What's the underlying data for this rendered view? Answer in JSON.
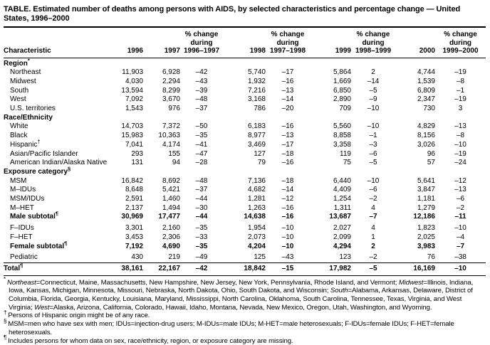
{
  "title": "TABLE. Estimated number of deaths among persons with AIDS, by selected characteristics and percentage change — United States, 1996–2000",
  "table": {
    "header": {
      "characteristic": "Characteristic",
      "pct_change_line1": "% change",
      "pct_change_line2": "during",
      "years": [
        "1996",
        "1997",
        "1998",
        "1999",
        "2000"
      ],
      "ranges": [
        "1996–1997",
        "1997–1998",
        "1998–1999",
        "1999–2000"
      ]
    },
    "rows": [
      {
        "type": "section",
        "label": "Region",
        "marker": "*"
      },
      {
        "type": "data",
        "label": "Northeast",
        "values": [
          "11,903",
          "6,928",
          "–42",
          "5,740",
          "–17",
          "5,864",
          "2",
          "4,744",
          "–19"
        ]
      },
      {
        "type": "data",
        "label": "Midwest",
        "values": [
          "4,030",
          "2,294",
          "–43",
          "1,932",
          "–16",
          "1,669",
          "–14",
          "1,539",
          "–8"
        ]
      },
      {
        "type": "data",
        "label": "South",
        "values": [
          "13,594",
          "8,299",
          "–39",
          "7,216",
          "–13",
          "6,850",
          "–5",
          "6,809",
          "–1"
        ]
      },
      {
        "type": "data",
        "label": "West",
        "values": [
          "7,092",
          "3,670",
          "–48",
          "3,168",
          "–14",
          "2,890",
          "–9",
          "2,347",
          "–19"
        ]
      },
      {
        "type": "data",
        "label": "U.S. territories",
        "values": [
          "1,543",
          "976",
          "–37",
          "786",
          "–20",
          "709",
          "–10",
          "730",
          "3"
        ]
      },
      {
        "type": "section",
        "label": "Race/Ethnicity"
      },
      {
        "type": "data",
        "label": "White",
        "values": [
          "14,703",
          "7,372",
          "–50",
          "6,183",
          "–16",
          "5,560",
          "–10",
          "4,829",
          "–13"
        ]
      },
      {
        "type": "data",
        "label": "Black",
        "values": [
          "15,983",
          "10,363",
          "–35",
          "8,977",
          "–13",
          "8,858",
          "–1",
          "8,156",
          "–8"
        ]
      },
      {
        "type": "data",
        "label": "Hispanic",
        "marker": "†",
        "values": [
          "7,041",
          "4,174",
          "–41",
          "3,469",
          "–17",
          "3,358",
          "–3",
          "3,026",
          "–10"
        ]
      },
      {
        "type": "data",
        "label": "Asian/Pacific Islander",
        "values": [
          "293",
          "155",
          "–47",
          "127",
          "–18",
          "119",
          "–6",
          "96",
          "–19"
        ]
      },
      {
        "type": "data",
        "label": "American Indian/Alaska Native",
        "values": [
          "131",
          "94",
          "–28",
          "79",
          "–16",
          "75",
          "–5",
          "57",
          "–24"
        ]
      },
      {
        "type": "section",
        "label": "Exposure category",
        "marker": "§"
      },
      {
        "type": "data",
        "label": "MSM",
        "values": [
          "16,842",
          "8,692",
          "–48",
          "7,136",
          "–18",
          "6,440",
          "–10",
          "5,641",
          "–12"
        ]
      },
      {
        "type": "data",
        "label": "M–IDUs",
        "values": [
          "8,648",
          "5,421",
          "–37",
          "4,682",
          "–14",
          "4,409",
          "–6",
          "3,847",
          "–13"
        ]
      },
      {
        "type": "data",
        "label": "MSM/IDUs",
        "values": [
          "2,591",
          "1,460",
          "–44",
          "1,281",
          "–12",
          "1,254",
          "–2",
          "1,181",
          "–6"
        ]
      },
      {
        "type": "data",
        "label": "M–HET",
        "values": [
          "2,137",
          "1,494",
          "–30",
          "1,263",
          "–16",
          "1,311",
          "4",
          "1,279",
          "–2"
        ]
      },
      {
        "type": "subtotal",
        "label": "Male subtotal",
        "marker": "¶",
        "values": [
          "30,969",
          "17,477",
          "–44",
          "14,638",
          "–16",
          "13,687",
          "–7",
          "12,186",
          "–11"
        ]
      },
      {
        "type": "data",
        "label": "F–IDUs",
        "gap": true,
        "values": [
          "3,301",
          "2,160",
          "–35",
          "1,954",
          "–10",
          "2,027",
          "4",
          "1,823",
          "–10"
        ]
      },
      {
        "type": "data",
        "label": "F–HET",
        "values": [
          "3,453",
          "2,306",
          "–33",
          "2,073",
          "–10",
          "2,099",
          "1",
          "2,025",
          "–4"
        ]
      },
      {
        "type": "subtotal",
        "label": "Female subtotal",
        "marker": "¶",
        "values": [
          "7,192",
          "4,690",
          "–35",
          "4,204",
          "–10",
          "4,294",
          "2",
          "3,983",
          "–7"
        ]
      },
      {
        "type": "data",
        "label": "Pediatric",
        "gap": true,
        "values": [
          "430",
          "219",
          "–49",
          "125",
          "–43",
          "123",
          "–2",
          "76",
          "–38"
        ]
      },
      {
        "type": "total",
        "label": "Total",
        "marker": "¶",
        "values": [
          "38,161",
          "22,167",
          "–42",
          "18,842",
          "–15",
          "17,982",
          "–5",
          "16,169",
          "–10"
        ]
      }
    ]
  },
  "footnotes": [
    {
      "marker": "*",
      "segments": [
        {
          "t": "Northeast",
          "i": true
        },
        {
          "t": "=Connecticut, Maine, Massachusetts, New Hampshire, New Jersey, New York, Pennsylvania, Rhode Island, and Vermont; "
        },
        {
          "t": "Midwest",
          "i": true
        },
        {
          "t": "=Illinois, Indiana, Iowa, Kansas, Michigan, Minnesota, Missouri, Nebraska, North Dakota, Ohio, South Dakota, and Wisconsin; "
        },
        {
          "t": "South",
          "i": true
        },
        {
          "t": "=Alabama, Arkansas, Delaware, District of Columbia, Florida, Georgia, Kentucky, Louisiana, Maryland, Mississippi, North Carolina, Oklahoma, South Carolina, Tennessee, Texas, Virginia, and West Virginia; "
        },
        {
          "t": "West",
          "i": true
        },
        {
          "t": "=Alaska, Arizona, California, Colorado, Hawaii, Idaho, Montana, Nevada, New Mexico, Oregon, Utah, Washington, and Wyoming."
        }
      ]
    },
    {
      "marker": "†",
      "segments": [
        {
          "t": "Persons of Hispanic origin might be of any race."
        }
      ]
    },
    {
      "marker": "§",
      "segments": [
        {
          "t": "MSM=men who have sex with men; IDUs=injection-drug users; M-IDUs=male IDUs; M-HET=male heterosexuals; F-IDUs=female IDUs; F-HET=female heterosexuals."
        }
      ]
    },
    {
      "marker": "¶",
      "segments": [
        {
          "t": "Includes persons for whom data on sex, race/ethnicity, region, or exposure category are missing."
        }
      ]
    }
  ]
}
